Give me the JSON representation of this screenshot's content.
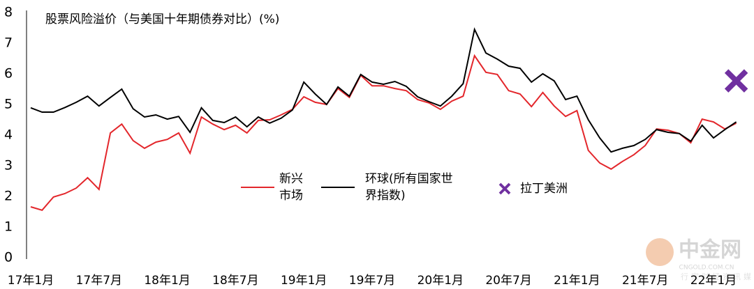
{
  "chart_data": {
    "type": "line",
    "title": "股票风险溢价（与美国十年期债券对比）(%)",
    "categories": [
      "17年1月",
      null,
      null,
      null,
      null,
      null,
      "17年7月",
      null,
      null,
      null,
      null,
      null,
      "18年1月",
      null,
      null,
      null,
      null,
      null,
      "18年7月",
      null,
      null,
      null,
      null,
      null,
      "19年1月",
      null,
      null,
      null,
      null,
      null,
      "19年7月",
      null,
      null,
      null,
      null,
      null,
      "20年1月",
      null,
      null,
      null,
      null,
      null,
      "20年7月",
      null,
      null,
      null,
      null,
      null,
      "21年1月",
      null,
      null,
      null,
      null,
      null,
      "21年7月",
      null,
      null,
      null,
      null,
      null,
      "22年1月",
      null,
      null
    ],
    "series": [
      {
        "name": "新兴市场",
        "color": "#e3262b",
        "values": [
          1.66,
          1.55,
          1.98,
          2.09,
          2.27,
          2.61,
          2.23,
          4.07,
          4.36,
          3.82,
          3.57,
          3.77,
          3.86,
          4.07,
          3.41,
          4.59,
          4.36,
          4.18,
          4.32,
          4.07,
          4.48,
          4.5,
          4.66,
          4.84,
          5.25,
          5.07,
          5.0,
          5.52,
          5.23,
          5.95,
          5.61,
          5.61,
          5.52,
          5.45,
          5.16,
          5.05,
          4.84,
          5.11,
          5.27,
          6.59,
          6.05,
          5.98,
          5.45,
          5.34,
          4.93,
          5.39,
          4.95,
          4.61,
          4.8,
          3.5,
          3.09,
          2.89,
          3.14,
          3.36,
          3.66,
          4.2,
          4.16,
          4.05,
          3.75,
          4.52,
          4.43,
          4.2,
          4.39
        ]
      },
      {
        "name": "环球(所有国家世界指数)",
        "color": "#000000",
        "values": [
          4.89,
          4.75,
          4.75,
          4.9,
          5.07,
          5.27,
          4.95,
          5.23,
          5.5,
          4.86,
          4.59,
          4.66,
          4.52,
          4.61,
          4.09,
          4.89,
          4.48,
          4.41,
          4.59,
          4.27,
          4.59,
          4.39,
          4.55,
          4.82,
          5.73,
          5.34,
          5.0,
          5.57,
          5.27,
          5.98,
          5.73,
          5.66,
          5.75,
          5.59,
          5.25,
          5.09,
          4.95,
          5.27,
          5.68,
          7.45,
          6.68,
          6.48,
          6.25,
          6.18,
          5.73,
          6.0,
          5.77,
          5.16,
          5.27,
          4.5,
          3.91,
          3.45,
          3.57,
          3.66,
          3.86,
          4.18,
          4.09,
          4.05,
          3.8,
          4.32,
          3.91,
          4.18,
          4.43
        ]
      },
      {
        "name": "拉丁美洲",
        "color": "#7030a0",
        "marker": "x",
        "values": [
          null,
          null,
          null,
          null,
          null,
          null,
          null,
          null,
          null,
          null,
          null,
          null,
          null,
          null,
          null,
          null,
          null,
          null,
          null,
          null,
          null,
          null,
          null,
          null,
          null,
          null,
          null,
          null,
          null,
          null,
          null,
          null,
          null,
          null,
          null,
          null,
          null,
          null,
          null,
          null,
          null,
          null,
          null,
          null,
          null,
          null,
          null,
          null,
          null,
          null,
          null,
          null,
          null,
          null,
          null,
          null,
          null,
          null,
          null,
          null,
          null,
          null,
          5.77
        ]
      }
    ],
    "ylim": [
      0,
      8
    ],
    "yticks": [
      0,
      1,
      2,
      3,
      4,
      5,
      6,
      7,
      8
    ]
  },
  "watermark": {
    "brand": "中金网",
    "tagline": "行家财经资讯媒体",
    "url": "CNGOLD.COM.CN"
  }
}
